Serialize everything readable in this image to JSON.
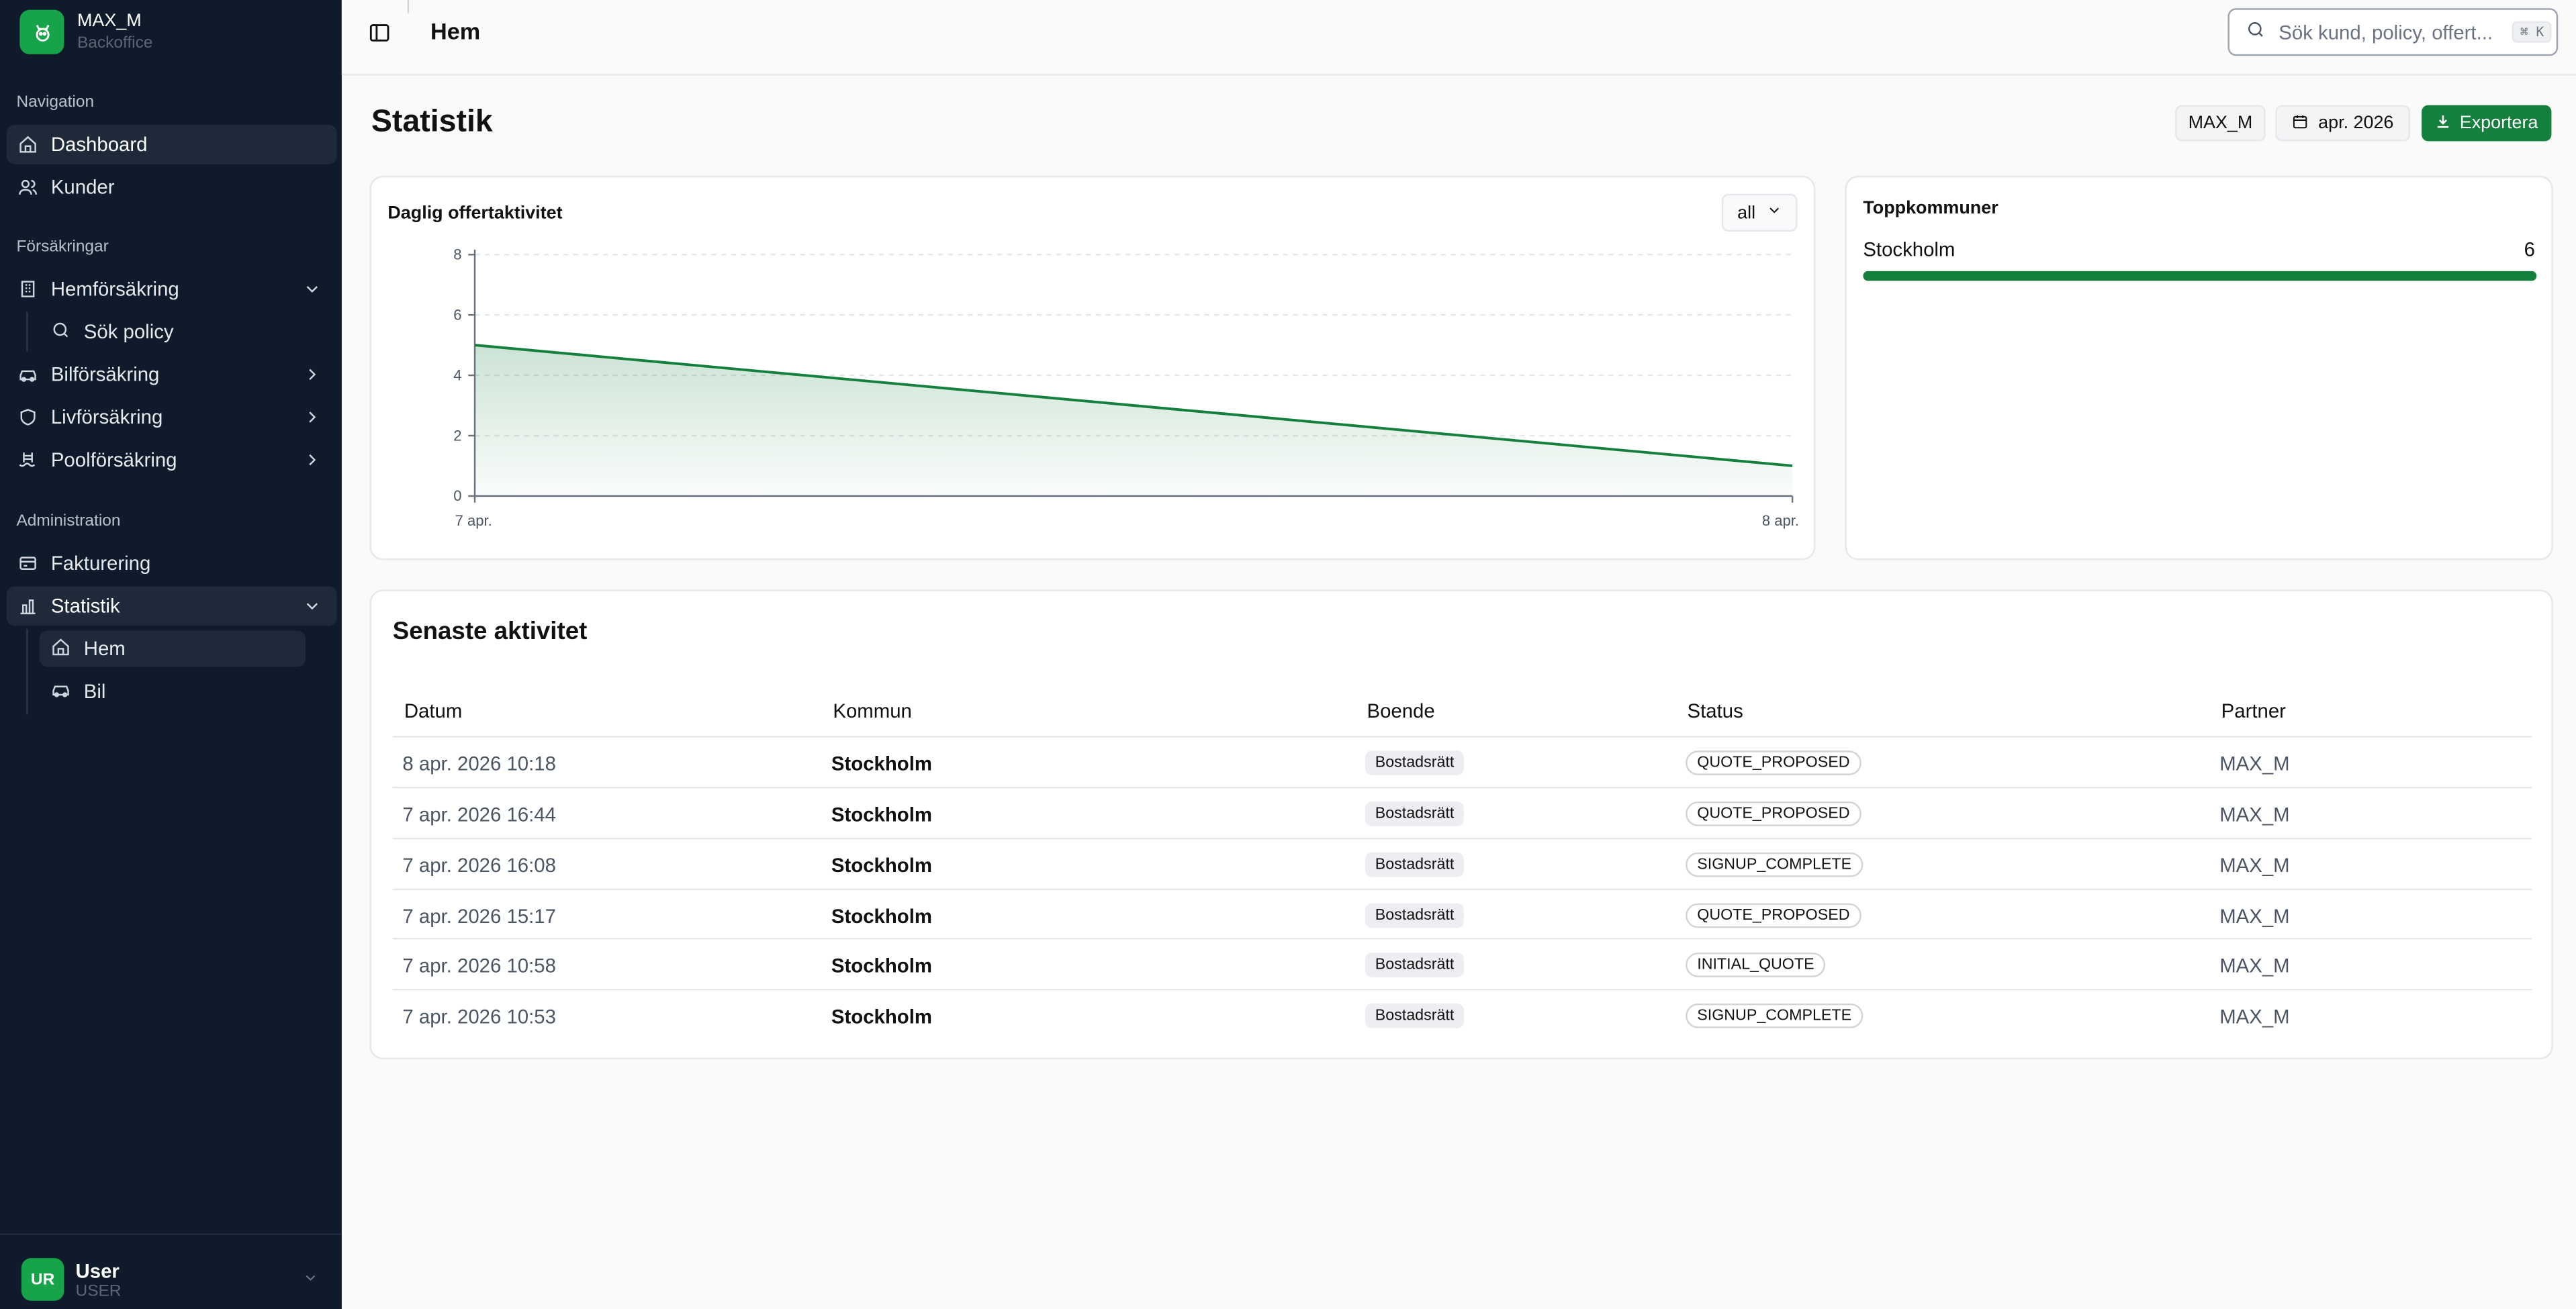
{
  "brand": {
    "name": "MAX_M",
    "subtitle": "Backoffice"
  },
  "sidebar": {
    "sections": [
      {
        "label": "Navigation"
      },
      {
        "label": "Försäkringar"
      },
      {
        "label": "Administration"
      }
    ],
    "items": [
      {
        "label": "Dashboard",
        "icon": "home-icon"
      },
      {
        "label": "Kunder",
        "icon": "users-icon"
      },
      {
        "label": "Hemförsäkring",
        "icon": "building-icon"
      },
      {
        "label": "Sök policy",
        "icon": "search-icon"
      },
      {
        "label": "Bilförsäkring",
        "icon": "car-icon"
      },
      {
        "label": "Livförsäkring",
        "icon": "shield-icon"
      },
      {
        "label": "Poolförsäkring",
        "icon": "pool-icon"
      },
      {
        "label": "Fakturering",
        "icon": "card-icon"
      },
      {
        "label": "Statistik",
        "icon": "chart-icon"
      },
      {
        "label": "Hem",
        "icon": "home-icon"
      },
      {
        "label": "Bil",
        "icon": "car-icon"
      }
    ]
  },
  "user": {
    "initials": "UR",
    "name": "User",
    "role": "USER"
  },
  "topbar": {
    "breadcrumb": "Hem",
    "search_placeholder": "Sök kund, policy, offert...",
    "shortcut": "⌘ K"
  },
  "page": {
    "title": "Statistik",
    "partner_chip": "MAX_M",
    "month_chip": "apr. 2026",
    "export_label": "Exportera"
  },
  "activity_card": {
    "title": "Daglig offertaktivitet",
    "filter_value": "all"
  },
  "chart_data": {
    "type": "area",
    "title": "Daglig offertaktivitet",
    "x": [
      "7 apr.",
      "8 apr."
    ],
    "values": [
      5,
      1
    ],
    "ylim": [
      0,
      8
    ],
    "yticks": [
      "0",
      "2",
      "4",
      "6",
      "8"
    ],
    "grid": true,
    "color": "#15803d"
  },
  "top_municipalities": {
    "title": "Toppkommuner",
    "items": [
      {
        "name": "Stockholm",
        "count": "6",
        "fraction": 1.0
      }
    ]
  },
  "recent": {
    "title": "Senaste aktivitet",
    "columns": [
      "Datum",
      "Kommun",
      "Boende",
      "Status",
      "Partner"
    ],
    "rows": [
      [
        "8 apr. 2026 10:18",
        "Stockholm",
        "Bostadsrätt",
        "QUOTE_PROPOSED",
        "MAX_M"
      ],
      [
        "7 apr. 2026 16:44",
        "Stockholm",
        "Bostadsrätt",
        "QUOTE_PROPOSED",
        "MAX_M"
      ],
      [
        "7 apr. 2026 16:08",
        "Stockholm",
        "Bostadsrätt",
        "SIGNUP_COMPLETE",
        "MAX_M"
      ],
      [
        "7 apr. 2026 15:17",
        "Stockholm",
        "Bostadsrätt",
        "QUOTE_PROPOSED",
        "MAX_M"
      ],
      [
        "7 apr. 2026 10:58",
        "Stockholm",
        "Bostadsrätt",
        "INITIAL_QUOTE",
        "MAX_M"
      ],
      [
        "7 apr. 2026 10:53",
        "Stockholm",
        "Bostadsrätt",
        "SIGNUP_COMPLETE",
        "MAX_M"
      ]
    ]
  },
  "colors": {
    "sidebar_bg": "#0f1b2a",
    "accent": "#15803d"
  }
}
